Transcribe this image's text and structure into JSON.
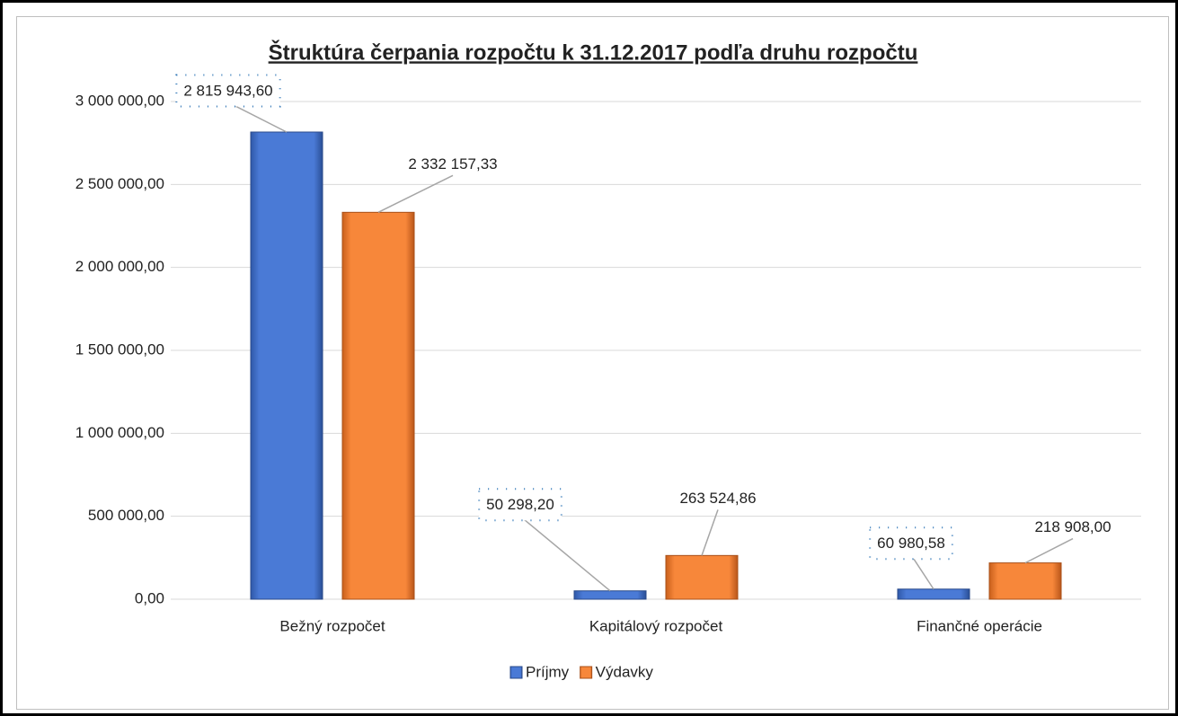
{
  "chart_data": {
    "type": "bar",
    "title": "Štruktúra čerpania rozpočtu k 31.12.2017 podľa druhu rozpočtu",
    "categories": [
      "Bežný rozpočet",
      "Kapitálový rozpočet",
      "Finančné operácie"
    ],
    "series": [
      {
        "name": "Príjmy",
        "color": "#4472c4",
        "values": [
          2815943.6,
          50298.2,
          60980.58
        ],
        "value_labels": [
          "2 815 943,60",
          "50 298,20",
          "60 980,58"
        ]
      },
      {
        "name": "Výdavky",
        "color": "#ed7d31",
        "values": [
          2332157.33,
          263524.86,
          218908
        ],
        "value_labels": [
          "2 332 157,33",
          "263 524,86",
          "218 908,00"
        ]
      }
    ],
    "ylim": [
      0,
      3000000
    ],
    "yticks": [
      {
        "value": 0,
        "label": "0,00"
      },
      {
        "value": 500000,
        "label": "500 000,00"
      },
      {
        "value": 1000000,
        "label": "1 000 000,00"
      },
      {
        "value": 1500000,
        "label": "1 500 000,00"
      },
      {
        "value": 2000000,
        "label": "2 000 000,00"
      },
      {
        "value": 2500000,
        "label": "2 500 000,00"
      },
      {
        "value": 3000000,
        "label": "3 000 000,00"
      }
    ],
    "grid": true,
    "legend": "bottom"
  }
}
